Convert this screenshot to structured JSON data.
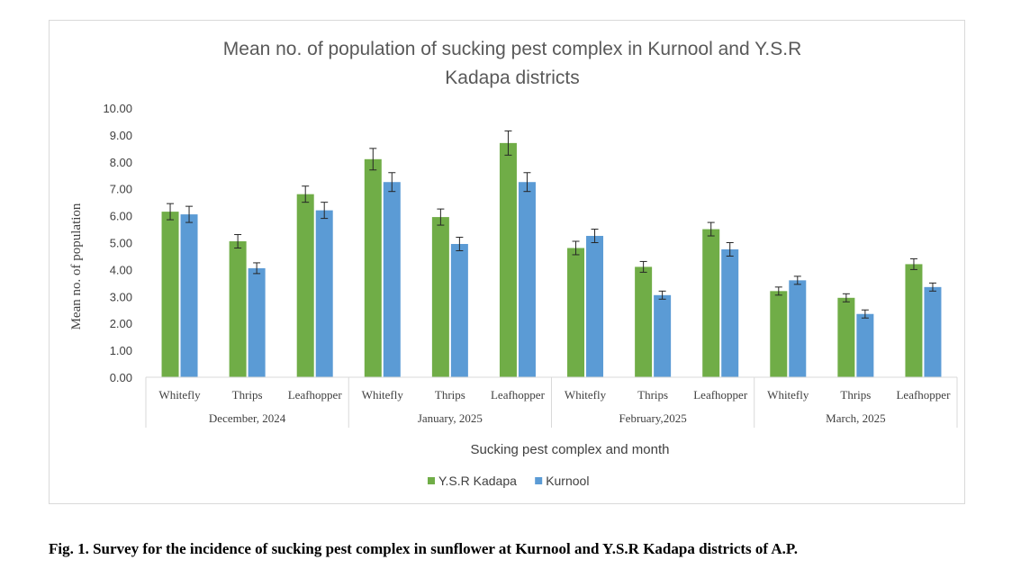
{
  "chart_data": {
    "type": "bar",
    "title_lines": [
      "Mean no. of population of sucking pest complex in Kurnool and Y.S.R",
      "Kadapa districts"
    ],
    "xlabel": "Sucking pest complex and month",
    "ylabel": "Mean no. of population",
    "ylim": [
      0,
      10
    ],
    "y_ticks": [
      "0.00",
      "1.00",
      "2.00",
      "3.00",
      "4.00",
      "5.00",
      "6.00",
      "7.00",
      "8.00",
      "9.00",
      "10.00"
    ],
    "grid": false,
    "legend_position": "bottom",
    "categories": [
      "Whitefly",
      "Thrips",
      "Leafhopper",
      "Whitefly",
      "Thrips",
      "Leafhopper",
      "Whitefly",
      "Thrips",
      "Leafhopper",
      "Whitefly",
      "Thrips",
      "Leafhopper"
    ],
    "groups": [
      "December, 2024",
      "January, 2025",
      "February,2025",
      "March, 2025"
    ],
    "series": [
      {
        "name": "Y.S.R Kadapa",
        "color": "#70ad47",
        "values": [
          6.15,
          5.05,
          6.8,
          8.1,
          5.95,
          8.7,
          4.8,
          4.1,
          5.5,
          3.2,
          2.95,
          4.2
        ],
        "errors": [
          0.3,
          0.25,
          0.3,
          0.4,
          0.3,
          0.45,
          0.25,
          0.2,
          0.25,
          0.15,
          0.15,
          0.2
        ]
      },
      {
        "name": "Kurnool",
        "color": "#5b9bd5",
        "values": [
          6.05,
          4.05,
          6.2,
          7.25,
          4.95,
          7.25,
          5.25,
          3.05,
          4.75,
          3.6,
          2.35,
          3.35
        ],
        "errors": [
          0.3,
          0.2,
          0.3,
          0.35,
          0.25,
          0.35,
          0.25,
          0.15,
          0.25,
          0.15,
          0.15,
          0.15
        ]
      }
    ]
  },
  "caption": "Fig. 1. Survey for the incidence of sucking pest complex in sunflower at Kurnool and Y.S.R Kadapa districts of A.P."
}
